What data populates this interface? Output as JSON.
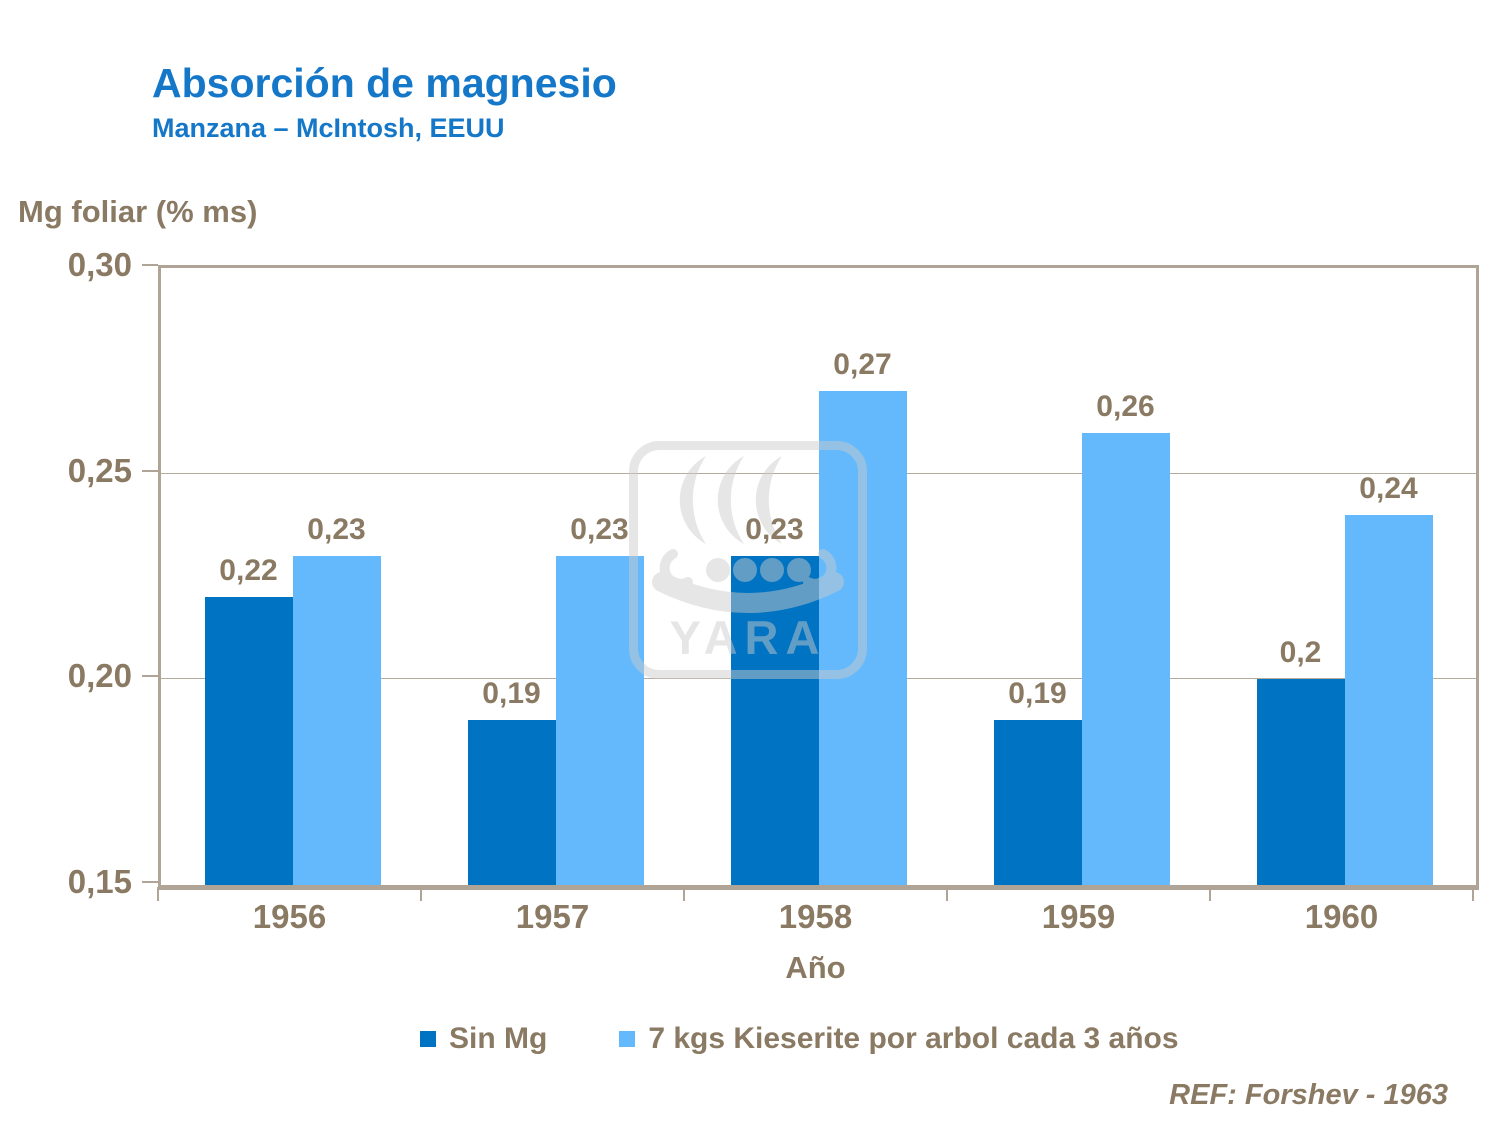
{
  "header": {
    "title": "Absorción de magnesio",
    "subtitle": "Manzana – McIntosh, EEUU"
  },
  "chart_data": {
    "type": "bar",
    "title": "Absorción de magnesio",
    "subtitle": "Manzana – McIntosh, EEUU",
    "ylabel": "Mg foliar (% ms)",
    "xlabel": "Año",
    "categories": [
      "1956",
      "1957",
      "1958",
      "1959",
      "1960"
    ],
    "series": [
      {
        "name": "Sin Mg",
        "color": "#0073C2",
        "values": [
          0.22,
          0.19,
          0.23,
          0.19,
          0.2
        ],
        "labels": [
          "0,22",
          "0,19",
          "0,23",
          "0,19",
          "0,2"
        ]
      },
      {
        "name": "7 kgs Kieserite por arbol cada 3 años",
        "color": "#63B9FB",
        "values": [
          0.23,
          0.23,
          0.27,
          0.26,
          0.24
        ],
        "labels": [
          "0,23",
          "0,23",
          "0,27",
          "0,26",
          "0,24"
        ]
      }
    ],
    "ylim": [
      0.15,
      0.3
    ],
    "yticks": [
      0.3,
      0.25,
      0.2,
      0.15
    ],
    "ytick_labels": [
      "0,30",
      "0,25",
      "0,20",
      "0,15"
    ],
    "grid": true,
    "legend_position": "bottom"
  },
  "watermark": {
    "name": "yara-logo",
    "text": "YARA"
  },
  "footer": {
    "ref": "REF: Forshev - 1963"
  },
  "colors": {
    "title_blue": "#1577C8",
    "series_dark_blue": "#0073C2",
    "series_light_blue": "#63B9FB",
    "axis_text_brown": "#8A7A63",
    "axis_line_tan": "#AFA496",
    "gridline": "#B5AB9D",
    "watermark_gray": "#CCCCCC"
  }
}
